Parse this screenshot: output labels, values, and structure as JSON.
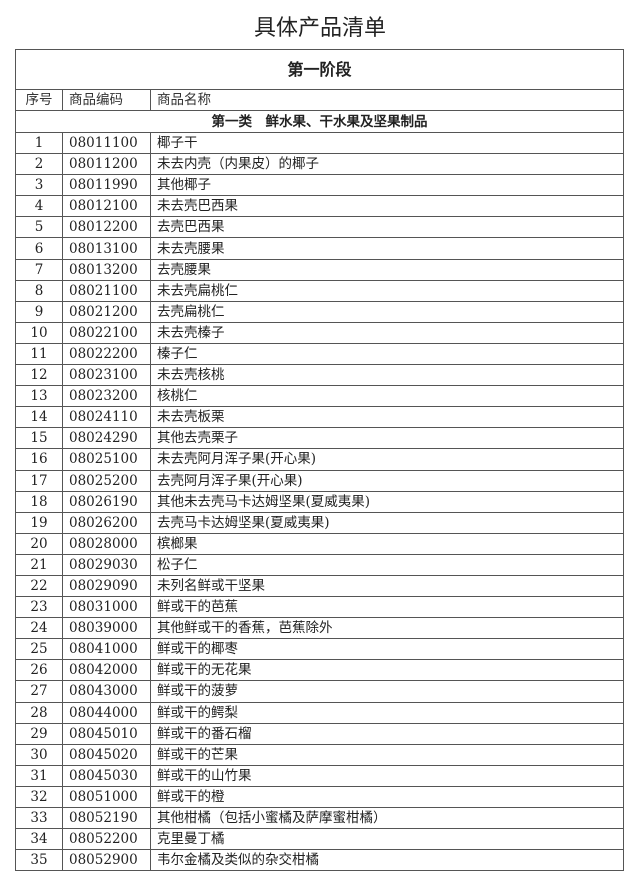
{
  "title": "具体产品清单",
  "stage": "第一阶段",
  "headers": {
    "no": "序号",
    "code": "商品编码",
    "name": "商品名称"
  },
  "category": "第一类　鲜水果、干水果及坚果制品",
  "rows": [
    {
      "no": "1",
      "code": "08011100",
      "name": "椰子干"
    },
    {
      "no": "2",
      "code": "08011200",
      "name": "未去内壳（内果皮）的椰子"
    },
    {
      "no": "3",
      "code": "08011990",
      "name": "其他椰子"
    },
    {
      "no": "4",
      "code": "08012100",
      "name": "未去壳巴西果"
    },
    {
      "no": "5",
      "code": "08012200",
      "name": "去壳巴西果"
    },
    {
      "no": "6",
      "code": "08013100",
      "name": "未去壳腰果"
    },
    {
      "no": "7",
      "code": "08013200",
      "name": "去壳腰果"
    },
    {
      "no": "8",
      "code": "08021100",
      "name": "未去壳扁桃仁"
    },
    {
      "no": "9",
      "code": "08021200",
      "name": "去壳扁桃仁"
    },
    {
      "no": "10",
      "code": "08022100",
      "name": "未去壳榛子"
    },
    {
      "no": "11",
      "code": "08022200",
      "name": "榛子仁"
    },
    {
      "no": "12",
      "code": "08023100",
      "name": "未去壳核桃"
    },
    {
      "no": "13",
      "code": "08023200",
      "name": "核桃仁"
    },
    {
      "no": "14",
      "code": "08024110",
      "name": "未去壳板栗"
    },
    {
      "no": "15",
      "code": "08024290",
      "name": "其他去壳栗子"
    },
    {
      "no": "16",
      "code": "08025100",
      "name": "未去壳阿月浑子果(开心果)"
    },
    {
      "no": "17",
      "code": "08025200",
      "name": "去壳阿月浑子果(开心果)"
    },
    {
      "no": "18",
      "code": "08026190",
      "name": "其他未去壳马卡达姆坚果(夏威夷果)"
    },
    {
      "no": "19",
      "code": "08026200",
      "name": "去壳马卡达姆坚果(夏威夷果)"
    },
    {
      "no": "20",
      "code": "08028000",
      "name": "槟榔果"
    },
    {
      "no": "21",
      "code": "08029030",
      "name": "松子仁"
    },
    {
      "no": "22",
      "code": "08029090",
      "name": "未列名鲜或干坚果"
    },
    {
      "no": "23",
      "code": "08031000",
      "name": "鲜或干的芭蕉"
    },
    {
      "no": "24",
      "code": "08039000",
      "name": "其他鲜或干的香蕉，芭蕉除外"
    },
    {
      "no": "25",
      "code": "08041000",
      "name": "鲜或干的椰枣"
    },
    {
      "no": "26",
      "code": "08042000",
      "name": "鲜或干的无花果"
    },
    {
      "no": "27",
      "code": "08043000",
      "name": "鲜或干的菠萝"
    },
    {
      "no": "28",
      "code": "08044000",
      "name": "鲜或干的鳄梨"
    },
    {
      "no": "29",
      "code": "08045010",
      "name": "鲜或干的番石榴"
    },
    {
      "no": "30",
      "code": "08045020",
      "name": "鲜或干的芒果"
    },
    {
      "no": "31",
      "code": "08045030",
      "name": "鲜或干的山竹果"
    },
    {
      "no": "32",
      "code": "08051000",
      "name": "鲜或干的橙"
    },
    {
      "no": "33",
      "code": "08052190",
      "name": "其他柑橘（包括小蜜橘及萨摩蜜柑橘）"
    },
    {
      "no": "34",
      "code": "08052200",
      "name": "克里曼丁橘"
    },
    {
      "no": "35",
      "code": "08052900",
      "name": "韦尔金橘及类似的杂交柑橘"
    }
  ]
}
